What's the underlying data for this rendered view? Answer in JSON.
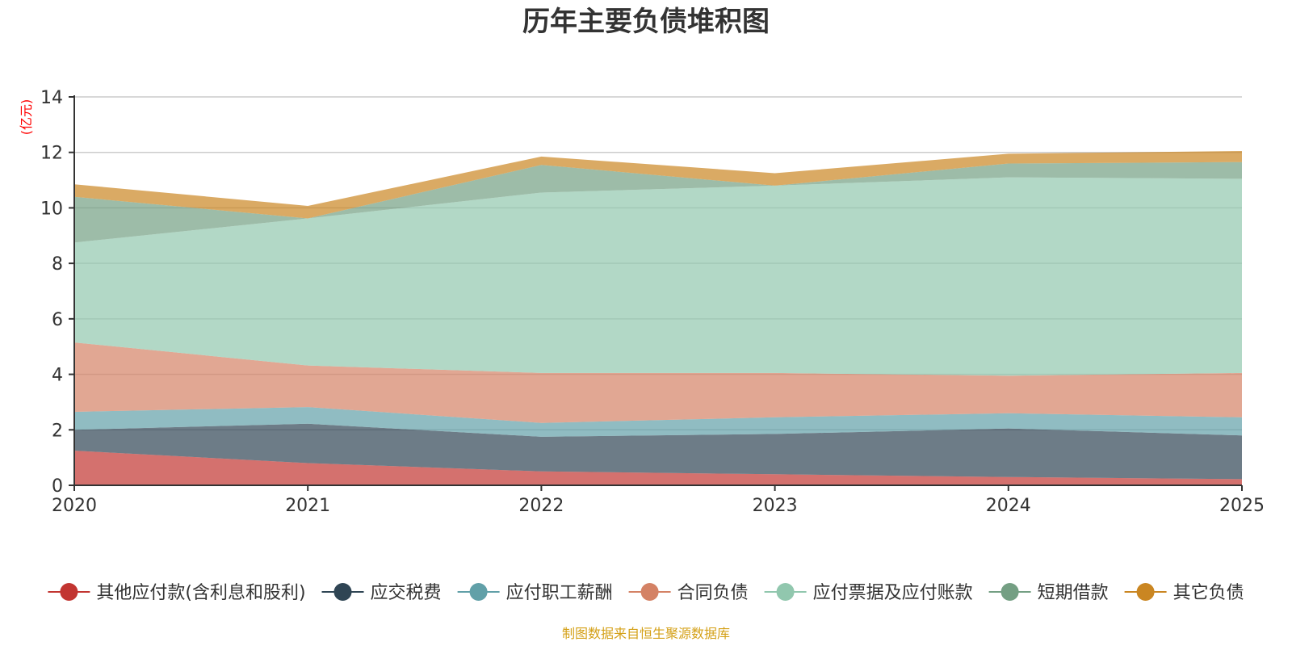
{
  "chart_data": {
    "type": "area",
    "stacked": true,
    "title": "历年主要负债堆积图",
    "ylabel": "(亿元)",
    "xlabel": "",
    "ylim": [
      0,
      14
    ],
    "yticks": [
      0,
      2,
      4,
      6,
      8,
      10,
      12,
      14
    ],
    "categories": [
      "2020",
      "2021",
      "2022",
      "2023",
      "2024",
      "2025"
    ],
    "legend_position": "bottom",
    "series": [
      {
        "name": "其他应付款(含利息和股利)",
        "color": "#c23531",
        "values": [
          1.25,
          0.8,
          0.5,
          0.4,
          0.3,
          0.22
        ]
      },
      {
        "name": "应交税费",
        "color": "#2f4554",
        "values": [
          0.75,
          1.42,
          1.25,
          1.45,
          1.75,
          1.58
        ]
      },
      {
        "name": "应付职工薪酬",
        "color": "#61a0a8",
        "values": [
          0.65,
          0.6,
          0.5,
          0.6,
          0.55,
          0.65
        ]
      },
      {
        "name": "合同负债",
        "color": "#d48265",
        "values": [
          2.5,
          1.5,
          1.8,
          1.6,
          1.35,
          1.6
        ]
      },
      {
        "name": "应付票据及应付账款",
        "color": "#91c7ae",
        "values": [
          3.6,
          5.3,
          6.5,
          6.75,
          7.15,
          7.0
        ]
      },
      {
        "name": "短期借款",
        "color": "#749f83",
        "values": [
          1.65,
          0.0,
          1.0,
          0.0,
          0.5,
          0.6
        ]
      },
      {
        "name": "其它负债",
        "color": "#ca8622",
        "values": [
          0.45,
          0.45,
          0.3,
          0.45,
          0.35,
          0.4
        ]
      }
    ]
  },
  "source_note": "制图数据来自恒生聚源数据库"
}
